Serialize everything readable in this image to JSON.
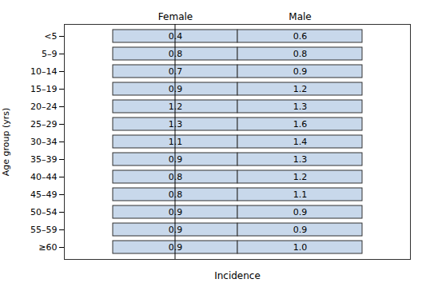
{
  "chart_data": {
    "type": "table",
    "xlabel": "Incidence",
    "ylabel": "Age group (yrs)",
    "categories": [
      "<5",
      "5–9",
      "10–14",
      "15–19",
      "20–24",
      "25–29",
      "30–34",
      "35–39",
      "40–44",
      "45–49",
      "50–54",
      "55–59",
      "≥60"
    ],
    "series": [
      {
        "name": "Female",
        "values": [
          0.4,
          0.8,
          0.7,
          0.9,
          1.2,
          1.3,
          1.1,
          0.9,
          0.8,
          0.8,
          0.9,
          0.9,
          0.9
        ],
        "value_labels": [
          "0.4",
          "0.8",
          "0.7",
          "0.9",
          "1.2",
          "1.3",
          "1.1",
          "0.9",
          "0.8",
          "0.8",
          "0.9",
          "0.9",
          "0.9"
        ]
      },
      {
        "name": "Male",
        "values": [
          0.6,
          0.8,
          0.9,
          1.2,
          1.3,
          1.6,
          1.4,
          1.3,
          1.2,
          1.1,
          0.9,
          0.9,
          1.0
        ],
        "value_labels": [
          "0.6",
          "0.8",
          "0.9",
          "1.2",
          "1.3",
          "1.6",
          "1.4",
          "1.3",
          "1.2",
          "1.1",
          "0.9",
          "0.9",
          "1.0"
        ]
      }
    ],
    "color": "#c8d8eb",
    "data_labels": true,
    "tick_labels": "y"
  }
}
